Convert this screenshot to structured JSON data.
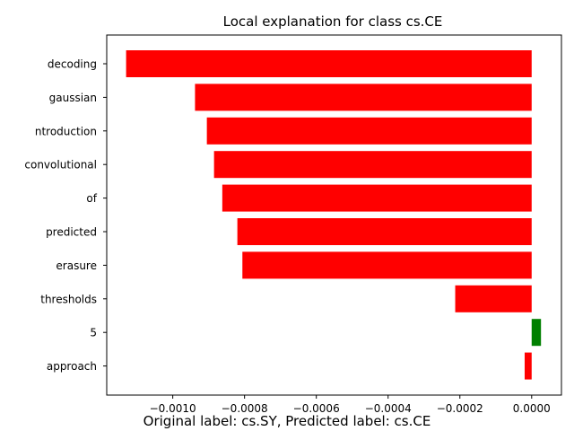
{
  "chart_data": {
    "type": "bar",
    "orientation": "horizontal",
    "title": "Local explanation for class cs.CE",
    "xlabel": "",
    "ylabel": "",
    "categories": [
      "decoding",
      "gaussian",
      "ntroduction",
      "convolutional",
      "of",
      "predicted",
      "erasure",
      "thresholds",
      "5",
      "approach"
    ],
    "values": [
      -0.00113,
      -0.000938,
      -0.000905,
      -0.000885,
      -0.000862,
      -0.00082,
      -0.000806,
      -0.000213,
      2.6e-05,
      -1.95e-05
    ],
    "bar_colors": [
      "#ff0000",
      "#ff0000",
      "#ff0000",
      "#ff0000",
      "#ff0000",
      "#ff0000",
      "#ff0000",
      "#ff0000",
      "#008000",
      "#ff0000"
    ],
    "xlim": [
      -0.001184,
      8.3e-05
    ],
    "xticks": [
      -0.001,
      -0.0008,
      -0.0006,
      -0.0004,
      -0.0002,
      0.0
    ],
    "xtick_labels": [
      "−0.0010",
      "−0.0008",
      "−0.0006",
      "−0.0004",
      "−0.0002",
      "0.0000"
    ],
    "grid": false,
    "legend": "none"
  },
  "caption": "Original label: cs.SY, Predicted label: cs.CE"
}
